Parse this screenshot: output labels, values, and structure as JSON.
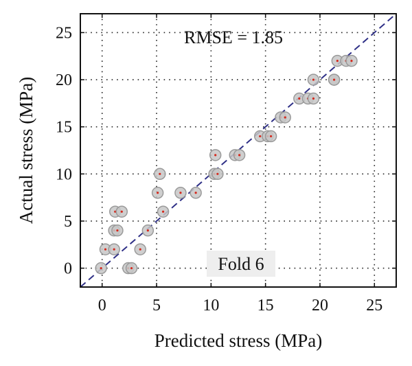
{
  "chart_data": {
    "type": "scatter",
    "title": "",
    "xlabel": "Predicted stress (MPa)",
    "ylabel": "Actual stress (MPa)",
    "xlim": [
      -2,
      27
    ],
    "ylim": [
      -2,
      27
    ],
    "xticks": [
      0,
      5,
      10,
      15,
      20,
      25
    ],
    "yticks": [
      0,
      5,
      10,
      15,
      20,
      25
    ],
    "grid": true,
    "reference_line": "y = x",
    "annotations": {
      "rmse": "RMSE = 1.85",
      "fold": "Fold 6"
    },
    "colors": {
      "marker_fill": "#c7c7c7",
      "marker_edge": "#9a9a9a",
      "marker_center": "#d42a1e",
      "reference_line": "#2e2f86",
      "fold_box": "#eeeeee"
    },
    "points": [
      {
        "x": -0.1,
        "y": 0
      },
      {
        "x": 0.3,
        "y": 2
      },
      {
        "x": 1.1,
        "y": 2
      },
      {
        "x": 1.1,
        "y": 4
      },
      {
        "x": 1.4,
        "y": 4
      },
      {
        "x": 1.2,
        "y": 6
      },
      {
        "x": 1.8,
        "y": 6
      },
      {
        "x": 2.4,
        "y": 0
      },
      {
        "x": 2.7,
        "y": 0
      },
      {
        "x": 3.5,
        "y": 2
      },
      {
        "x": 4.2,
        "y": 4
      },
      {
        "x": 5.1,
        "y": 8
      },
      {
        "x": 5.3,
        "y": 10
      },
      {
        "x": 5.6,
        "y": 6
      },
      {
        "x": 7.2,
        "y": 8
      },
      {
        "x": 8.6,
        "y": 8
      },
      {
        "x": 10.3,
        "y": 10
      },
      {
        "x": 10.6,
        "y": 10
      },
      {
        "x": 10.4,
        "y": 12
      },
      {
        "x": 12.2,
        "y": 12
      },
      {
        "x": 12.6,
        "y": 12
      },
      {
        "x": 14.5,
        "y": 14
      },
      {
        "x": 15.2,
        "y": 14
      },
      {
        "x": 15.5,
        "y": 14
      },
      {
        "x": 16.4,
        "y": 16
      },
      {
        "x": 16.8,
        "y": 16
      },
      {
        "x": 18.1,
        "y": 18
      },
      {
        "x": 18.9,
        "y": 18
      },
      {
        "x": 19.4,
        "y": 18
      },
      {
        "x": 19.4,
        "y": 20
      },
      {
        "x": 21.3,
        "y": 20
      },
      {
        "x": 21.3,
        "y": 20
      },
      {
        "x": 21.6,
        "y": 22
      },
      {
        "x": 22.4,
        "y": 22
      },
      {
        "x": 22.9,
        "y": 22
      }
    ]
  }
}
